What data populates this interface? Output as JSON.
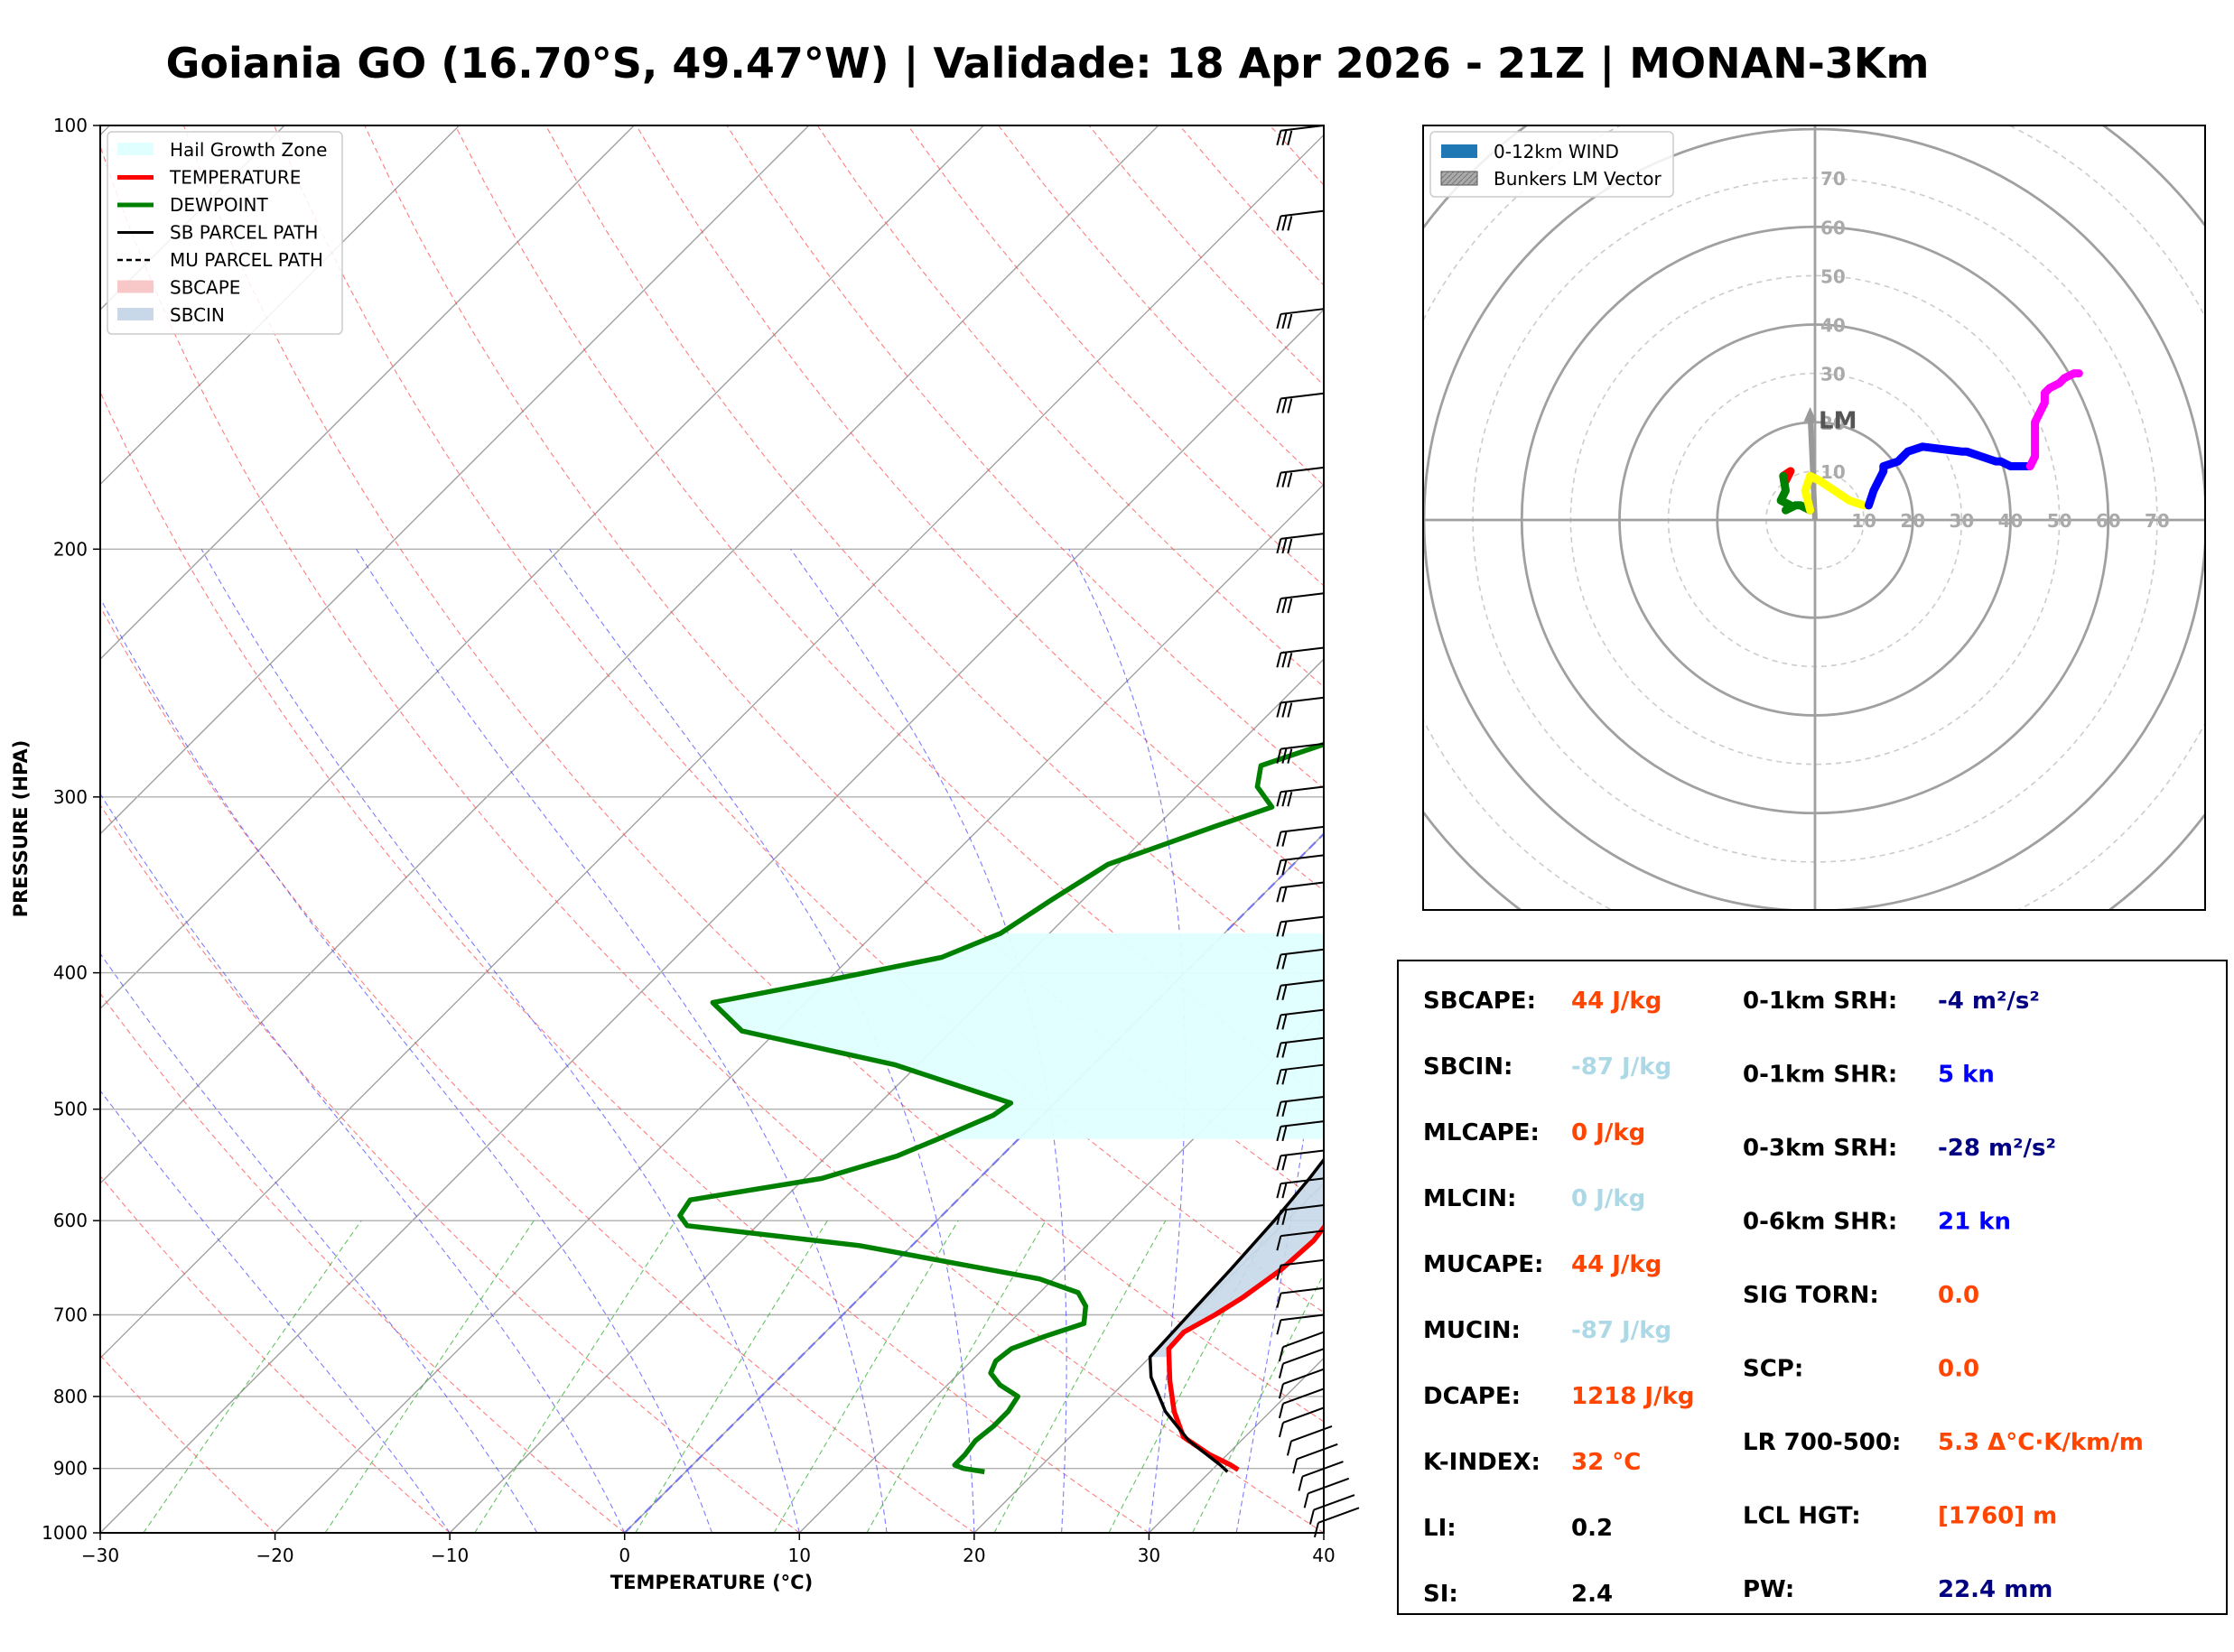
{
  "title": "Goiania GO (16.70°S, 49.47°W) | Validade: 18 Apr 2026 - 21Z | MONAN-3Km",
  "chart_data": [
    {
      "type": "line",
      "name": "skew-t",
      "xlabel": "TEMPERATURE (°C)",
      "ylabel": "PRESSURE (HPA)",
      "xlim": [
        -30,
        40
      ],
      "ylim": [
        1000,
        100
      ],
      "x_ticks": [
        -30,
        -20,
        -10,
        0,
        10,
        20,
        30,
        40
      ],
      "x_tick_labels": [
        "−30",
        "−20",
        "−10",
        "0",
        "10",
        "20",
        "30",
        "40"
      ],
      "y_ticks": [
        1000,
        900,
        800,
        700,
        600,
        500,
        400,
        300,
        200,
        100
      ],
      "y_tick_labels": [
        "1000",
        "900",
        "800",
        "700",
        "600",
        "500",
        "400",
        "300",
        "200",
        "100"
      ],
      "legend": {
        "position": "top-left",
        "entries": [
          {
            "label": "Hail Growth Zone",
            "style": "fill",
            "color": "#e0ffff"
          },
          {
            "label": "TEMPERATURE",
            "style": "line",
            "color": "#ff0000"
          },
          {
            "label": "DEWPOINT",
            "style": "line",
            "color": "#008000"
          },
          {
            "label": "SB PARCEL PATH",
            "style": "line",
            "color": "#000000"
          },
          {
            "label": "MU PARCEL PATH",
            "style": "dash",
            "color": "#000000"
          },
          {
            "label": "SBCAPE",
            "style": "fill",
            "color": "#f8c8c8"
          },
          {
            "label": "SBCIN",
            "style": "fill",
            "color": "#c8d8e8"
          }
        ]
      },
      "series": [
        {
          "name": "TEMPERATURE",
          "color": "#ff0000",
          "points": [
            [
              31.5,
              902
            ],
            [
              30.8,
              895
            ],
            [
              29,
              880
            ],
            [
              26.5,
              855
            ],
            [
              24.5,
              820
            ],
            [
              22.5,
              780
            ],
            [
              20.6,
              740
            ],
            [
              20.5,
              720
            ],
            [
              21.3,
              700
            ],
            [
              21.9,
              680
            ],
            [
              22.5,
              650
            ],
            [
              22.7,
              620
            ],
            [
              22.3,
              590
            ],
            [
              21.8,
              570
            ],
            [
              21.0,
              545
            ],
            [
              19.8,
              520
            ],
            [
              18.3,
              500
            ],
            [
              17.3,
              485
            ],
            [
              16.7,
              470
            ],
            [
              16.2,
              440
            ],
            [
              15.8,
              420
            ],
            [
              15.0,
              410
            ],
            [
              14.2,
              395
            ],
            [
              13.2,
              375
            ],
            [
              11.3,
              345
            ],
            [
              10.5,
              330
            ],
            [
              8.9,
              305
            ],
            [
              7.5,
              285
            ],
            [
              6.0,
              265
            ],
            [
              3.0,
              235
            ],
            [
              0.6,
              215
            ],
            [
              -1.5,
              200
            ],
            [
              -4.4,
              180
            ],
            [
              -6.8,
              165
            ],
            [
              -8.2,
              155
            ],
            [
              -9.0,
              145
            ],
            [
              -9.3,
              135
            ],
            [
              -8.9,
              125
            ],
            [
              -8.0,
              115
            ],
            [
              -6.5,
              105
            ],
            [
              -5.0,
              100
            ]
          ]
        },
        {
          "name": "DEWPOINT",
          "color": "#008000",
          "points": [
            [
              17.1,
              905
            ],
            [
              15.7,
              900
            ],
            [
              15.0,
              895
            ],
            [
              15.0,
              880
            ],
            [
              14.8,
              860
            ],
            [
              15.0,
              840
            ],
            [
              15.0,
              820
            ],
            [
              14.7,
              800
            ],
            [
              13.0,
              785
            ],
            [
              11.8,
              770
            ],
            [
              11.4,
              755
            ],
            [
              11.6,
              740
            ],
            [
              12.8,
              725
            ],
            [
              14.3,
              710
            ],
            [
              13.4,
              690
            ],
            [
              12.2,
              675
            ],
            [
              9.2,
              660
            ],
            [
              -3.0,
              625
            ],
            [
              -14.0,
              605
            ],
            [
              -15.0,
              595
            ],
            [
              -15.3,
              580
            ],
            [
              -9.0,
              560
            ],
            [
              -6.0,
              540
            ],
            [
              -4.6,
              525
            ],
            [
              -2.8,
              505
            ],
            [
              -2.5,
              495
            ],
            [
              -11.3,
              465
            ],
            [
              -22.0,
              440
            ],
            [
              -25.3,
              420
            ],
            [
              -20.0,
              405
            ],
            [
              -14.8,
              390
            ],
            [
              -12.8,
              375
            ],
            [
              -11.8,
              355
            ],
            [
              -10.6,
              335
            ],
            [
              -6.7,
              315
            ],
            [
              -4.5,
              305
            ],
            [
              -6.5,
              295
            ],
            [
              -7.5,
              285
            ],
            [
              -3.8,
              270
            ],
            [
              -3.4,
              255
            ],
            [
              -5.4,
              235
            ],
            [
              -6.0,
              215
            ],
            [
              -5.5,
              195
            ],
            [
              -6.8,
              185
            ],
            [
              -7.8,
              175
            ],
            [
              -8.0,
              165
            ],
            [
              -8.6,
              155
            ],
            [
              -9.2,
              145
            ],
            [
              -9.6,
              135
            ],
            [
              -10.3,
              125
            ],
            [
              -10.7,
              118
            ],
            [
              -9.8,
              112
            ],
            [
              -8.8,
              105
            ],
            [
              -8.0,
              100
            ]
          ]
        },
        {
          "name": "SB PARCEL PATH",
          "color": "#000000",
          "points": [
            [
              31.0,
              905
            ],
            [
              30.2,
              895
            ],
            [
              27.0,
              860
            ],
            [
              24.0,
              820
            ],
            [
              21.2,
              775
            ],
            [
              20.0,
              750
            ],
            [
              19.8,
              700
            ],
            [
              19.6,
              650
            ],
            [
              19.3,
              600
            ],
            [
              18.9,
              560
            ],
            [
              18.3,
              520
            ],
            [
              17.8,
              500
            ],
            [
              17.0,
              470
            ],
            [
              16.3,
              440
            ],
            [
              15.4,
              410
            ],
            [
              14.4,
              385
            ],
            [
              13.0,
              355
            ],
            [
              11.5,
              330
            ],
            [
              9.7,
              305
            ],
            [
              7.3,
              280
            ],
            [
              4.7,
              255
            ],
            [
              1.2,
              230
            ],
            [
              -2.9,
              205
            ],
            [
              -7.1,
              185
            ],
            [
              -12.0,
              165
            ],
            [
              -16.3,
              150
            ],
            [
              -21.0,
              135
            ],
            [
              -25.5,
              122
            ],
            [
              -29.2,
              112
            ],
            [
              -32.0,
              105
            ],
            [
              -34.0,
              100
            ]
          ]
        }
      ],
      "hail_growth_zone": {
        "top_hpa": 375,
        "bottom_hpa": 525
      },
      "sbcin_region": {
        "top_hpa": 525,
        "bottom_hpa": 750
      },
      "wind_barbs_hpa": [
        100,
        115,
        135,
        155,
        175,
        195,
        215,
        235,
        255,
        275,
        295,
        315,
        330,
        345,
        365,
        385,
        405,
        425,
        445,
        465,
        490,
        510,
        535,
        560,
        585,
        610,
        640,
        670,
        700,
        720,
        740,
        765,
        790,
        815,
        840,
        865,
        890,
        915,
        940,
        960
      ]
    },
    {
      "type": "line",
      "name": "hodograph",
      "xlim": [
        -80,
        80
      ],
      "ylim": [
        -80,
        80
      ],
      "x_ticks": [
        10,
        20,
        30,
        40,
        50,
        60,
        70
      ],
      "y_ticks": [
        10,
        20,
        30,
        40,
        50,
        60,
        70
      ],
      "ring_major": [
        20,
        40,
        60,
        80,
        100
      ],
      "ring_minor": [
        10,
        30,
        50,
        70,
        90
      ],
      "legend": {
        "position": "top-left",
        "entries": [
          {
            "label": "0-12km WIND",
            "style": "fill",
            "color": "#1f77b4"
          },
          {
            "label": "Bunkers LM Vector",
            "style": "hatch",
            "color": "#999999"
          }
        ]
      },
      "lm_label": "LM",
      "lm_vector": [
        -1,
        22
      ],
      "series": [
        {
          "name": "0-1km",
          "color": "#ff0000",
          "points": [
            [
              -6.5,
              9
            ],
            [
              -5,
              10
            ],
            [
              -6,
              8
            ]
          ]
        },
        {
          "name": "1-3km",
          "color": "#008000",
          "points": [
            [
              -6.5,
              9
            ],
            [
              -6,
              6
            ],
            [
              -7,
              4
            ],
            [
              -5,
              3
            ],
            [
              -6,
              2
            ],
            [
              -4,
              3
            ],
            [
              -3,
              3
            ],
            [
              -1,
              2
            ]
          ]
        },
        {
          "name": "3-6km",
          "color": "#ffff00",
          "points": [
            [
              -1,
              2
            ],
            [
              -2,
              6
            ],
            [
              -1,
              9
            ],
            [
              1,
              8
            ],
            [
              4,
              6
            ],
            [
              7,
              4
            ],
            [
              10,
              3
            ],
            [
              11,
              3
            ]
          ]
        },
        {
          "name": "6-9km",
          "color": "#0000ff",
          "points": [
            [
              11,
              3
            ],
            [
              12,
              6
            ],
            [
              14,
              10
            ],
            [
              14,
              11
            ],
            [
              17,
              12
            ],
            [
              19,
              14
            ],
            [
              22,
              15
            ],
            [
              30,
              14
            ],
            [
              31,
              14
            ],
            [
              34,
              13
            ],
            [
              37,
              12
            ],
            [
              38,
              12
            ],
            [
              40,
              11
            ],
            [
              42,
              11
            ],
            [
              44,
              11
            ]
          ]
        },
        {
          "name": "9-12km",
          "color": "#ff00ff",
          "points": [
            [
              44,
              11
            ],
            [
              45,
              13
            ],
            [
              45,
              16
            ],
            [
              45,
              18
            ],
            [
              45,
              20
            ],
            [
              46,
              22
            ],
            [
              47,
              24
            ],
            [
              47,
              26
            ],
            [
              48,
              27
            ],
            [
              50,
              28
            ],
            [
              51,
              29
            ],
            [
              53,
              30
            ],
            [
              54,
              30
            ]
          ]
        }
      ]
    }
  ],
  "indices": [
    {
      "label": "SBCAPE:",
      "value": "44 J/kg",
      "color": "#ff4500"
    },
    {
      "label": "SBCIN:",
      "value": "-87 J/kg",
      "color": "#add8e6"
    },
    {
      "label": "MLCAPE:",
      "value": "0 J/kg",
      "color": "#ff4500"
    },
    {
      "label": "MLCIN:",
      "value": "0 J/kg",
      "color": "#add8e6"
    },
    {
      "label": "MUCAPE:",
      "value": "44 J/kg",
      "color": "#ff4500"
    },
    {
      "label": "MUCIN:",
      "value": "-87 J/kg",
      "color": "#add8e6"
    },
    {
      "label": "DCAPE:",
      "value": "1218 J/kg",
      "color": "#ff4500"
    },
    {
      "label": "K-INDEX:",
      "value": "32 °C",
      "color": "#ff4500"
    },
    {
      "label": "LI:",
      "value": "0.2",
      "color": "#000000"
    },
    {
      "label": "SI:",
      "value": "2.4",
      "color": "#000000"
    }
  ],
  "indices_right": [
    {
      "label": "0-1km SRH:",
      "value": "-4 m²/s²",
      "color": "#000080"
    },
    {
      "label": "0-1km SHR:",
      "value": "5 kn",
      "color": "#0000ff"
    },
    {
      "label": "0-3km SRH:",
      "value": "-28 m²/s²",
      "color": "#000080"
    },
    {
      "label": "0-6km SHR:",
      "value": "21 kn",
      "color": "#0000ff"
    },
    {
      "label": "SIG TORN:",
      "value": "0.0",
      "color": "#ff4500"
    },
    {
      "label": "SCP:",
      "value": "0.0",
      "color": "#ff4500"
    },
    {
      "label": "LR 700-500:",
      "value": "5.3 Δ°C·K/km/m",
      "color": "#ff4500"
    },
    {
      "label": "LCL HGT:",
      "value": "[1760] m",
      "color": "#ff4500"
    },
    {
      "label": "PW:",
      "value": "22.4 mm",
      "color": "#000080"
    }
  ]
}
